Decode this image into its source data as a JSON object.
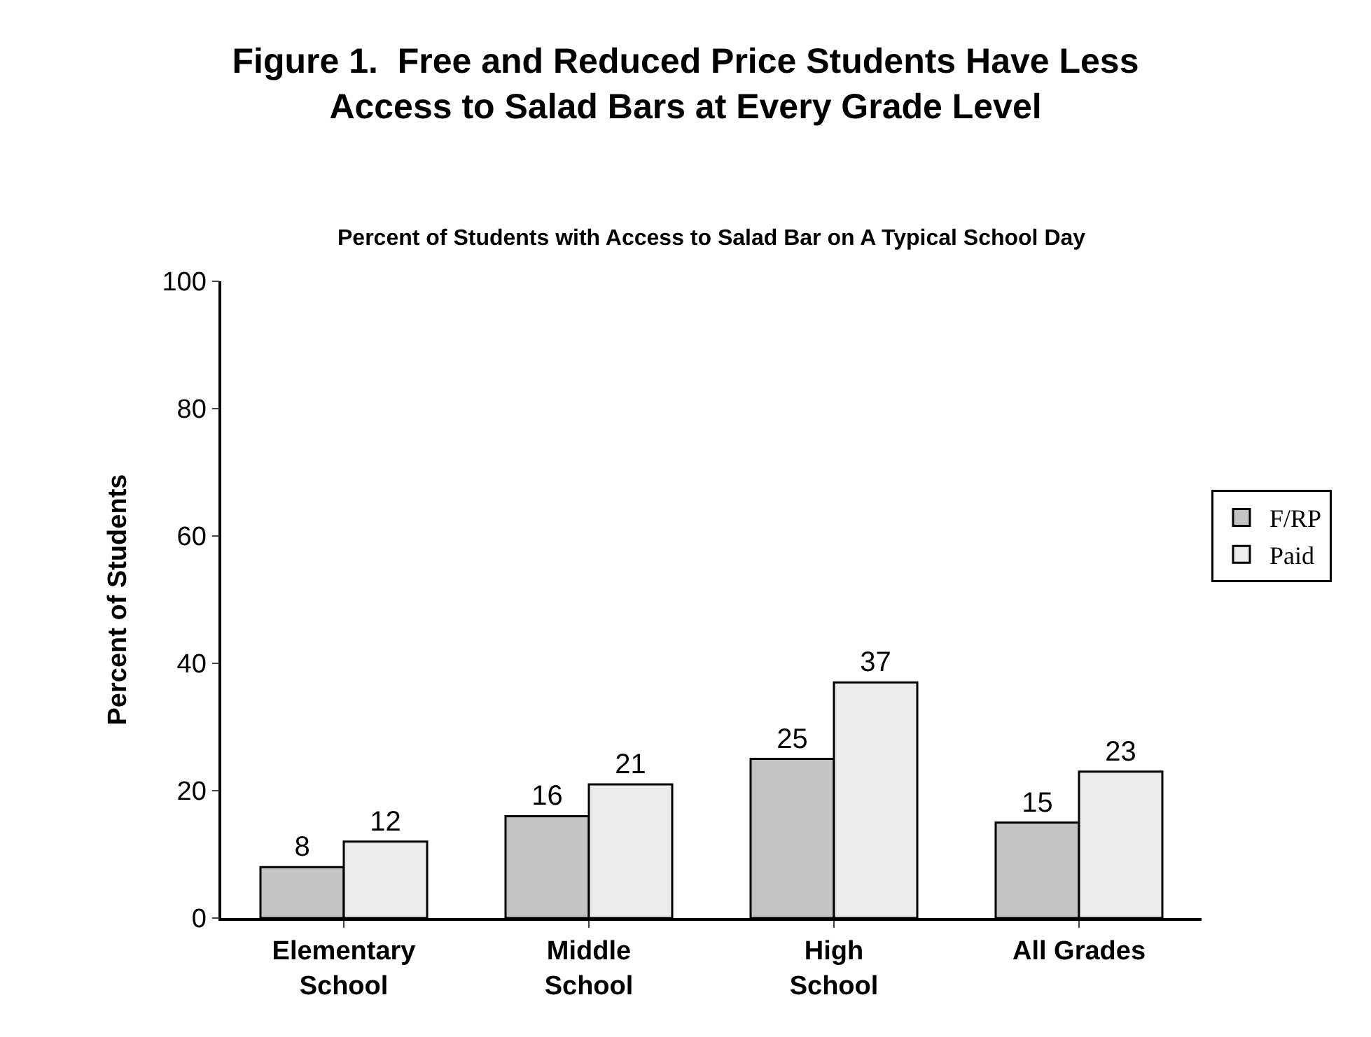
{
  "chart_data": {
    "type": "bar",
    "title": "Figure 1.  Free and Reduced Price Students Have Less\nAccess to Salad Bars at Every Grade Level",
    "subtitle": "Percent of Students with Access to Salad Bar on A Typical School Day",
    "ylabel": "Percent of Students",
    "categories": [
      "Elementary\nSchool",
      "Middle\nSchool",
      "High\nSchool",
      "All Grades"
    ],
    "series": [
      {
        "name": "F/RP",
        "color": "#c4c4c4",
        "values": [
          8,
          16,
          25,
          15
        ]
      },
      {
        "name": "Paid",
        "color": "#ececec",
        "values": [
          12,
          21,
          37,
          23
        ]
      }
    ],
    "ylim": [
      0,
      100
    ],
    "yticks": [
      0,
      20,
      40,
      60,
      80,
      100
    ],
    "legend": "right",
    "data_labels": true
  }
}
